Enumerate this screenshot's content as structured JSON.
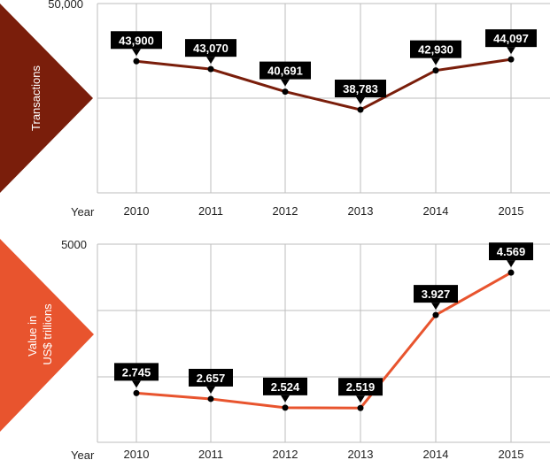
{
  "chart_data": [
    {
      "type": "line",
      "ylabel": "Transactions",
      "xlabel": "Year",
      "x": [
        "2010",
        "2011",
        "2012",
        "2013",
        "2014",
        "2015"
      ],
      "values": [
        43900,
        43070,
        40691,
        38783,
        42930,
        44097
      ],
      "value_labels": [
        "43,900",
        "43,070",
        "40,691",
        "38,783",
        "42,930",
        "44,097"
      ],
      "y_top_label": "50,000",
      "ylim": [
        30000,
        50000
      ],
      "grid": true,
      "line_color": "#7a1e0b",
      "badge_color": "#7a1e0b"
    },
    {
      "type": "line",
      "ylabel_lines": [
        "Value in",
        "US$ trillions"
      ],
      "xlabel": "Year",
      "x": [
        "2010",
        "2011",
        "2012",
        "2013",
        "2014",
        "2015"
      ],
      "values": [
        2.745,
        2.657,
        2.524,
        2.519,
        3.927,
        4.569
      ],
      "value_labels": [
        "2.745",
        "2.657",
        "2.524",
        "2.519",
        "3.927",
        "4.569"
      ],
      "y_top_label": "5000",
      "ylim": [
        2.0,
        5.0
      ],
      "grid": true,
      "line_color": "#e8542e",
      "badge_color": "#e8542e"
    }
  ]
}
